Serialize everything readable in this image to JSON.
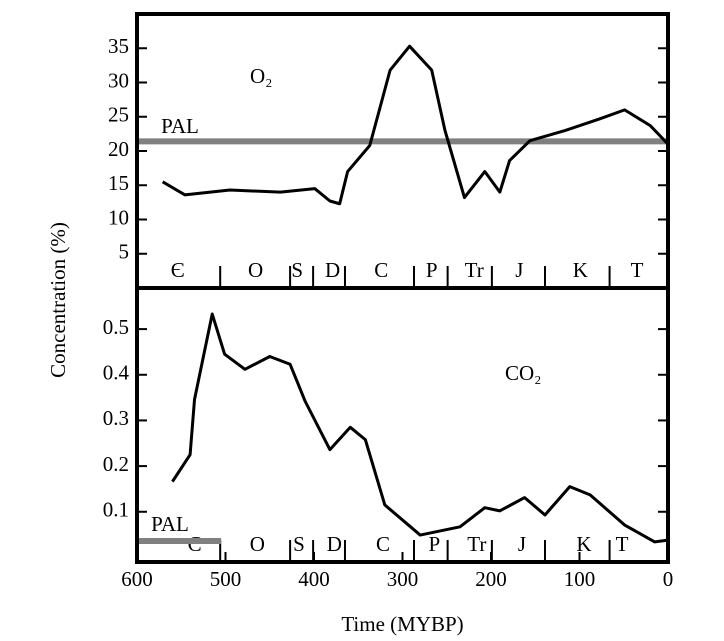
{
  "chart_data": [
    {
      "type": "line",
      "y_label": "Concentration (%)",
      "xlim": [
        600,
        0
      ],
      "ylim": [
        0,
        40
      ],
      "yticks": [
        5,
        10,
        15,
        20,
        25,
        30,
        35
      ],
      "x": [
        571,
        546,
        495,
        438,
        399,
        382,
        371,
        362,
        337,
        314,
        292,
        267,
        252,
        230,
        207,
        190,
        179,
        156,
        116,
        77,
        49,
        20,
        0
      ],
      "series": [
        {
          "name": "O₂",
          "color": "#000000",
          "values": [
            15.5,
            13.6,
            14.3,
            14.0,
            14.5,
            12.7,
            12.3,
            17,
            20.8,
            31.8,
            35.3,
            31.8,
            23,
            13.2,
            17,
            14,
            18.6,
            21.5,
            23,
            24.7,
            26,
            23.7,
            21
          ]
        }
      ],
      "reference_line": {
        "label": "PAL",
        "value": 21.4,
        "color": "#808080"
      },
      "period_boundaries": [
        506,
        427,
        401,
        365,
        287,
        249,
        199,
        139,
        66
      ],
      "periods": [
        {
          "label": "Є",
          "x": 554
        },
        {
          "label": "O",
          "x": 466
        },
        {
          "label": "S",
          "x": 419
        },
        {
          "label": "D",
          "x": 379
        },
        {
          "label": "C",
          "x": 324
        },
        {
          "label": "P",
          "x": 267
        },
        {
          "label": "Tr",
          "x": 219
        },
        {
          "label": "J",
          "x": 168
        },
        {
          "label": "K",
          "x": 99
        },
        {
          "label": "T",
          "x": 35
        }
      ]
    },
    {
      "type": "line",
      "x_label": "Time (MYBP)",
      "xlim": [
        600,
        0
      ],
      "xticks": [
        600,
        500,
        400,
        300,
        200,
        100,
        0
      ],
      "ylim": [
        -0.01,
        0.59
      ],
      "yticks": [
        0.1,
        0.2,
        0.3,
        0.4,
        0.5
      ],
      "x": [
        560,
        540,
        535,
        515,
        501,
        478,
        450,
        427,
        410,
        382,
        359,
        342,
        320,
        280,
        235,
        207,
        190,
        162,
        139,
        111,
        88,
        49,
        15,
        0
      ],
      "series": [
        {
          "name": "CO₂",
          "color": "#000000",
          "values": [
            0.166,
            0.225,
            0.346,
            0.533,
            0.445,
            0.412,
            0.44,
            0.423,
            0.342,
            0.236,
            0.285,
            0.258,
            0.115,
            0.049,
            0.067,
            0.109,
            0.102,
            0.131,
            0.093,
            0.155,
            0.137,
            0.071,
            0.034,
            0.038
          ]
        }
      ],
      "reference_line": {
        "label": "PAL",
        "value": 0.036,
        "color": "#808080",
        "x_extent": [
          600,
          505
        ]
      },
      "period_boundaries": [
        506,
        427,
        401,
        365,
        287,
        249,
        199,
        139,
        66
      ],
      "periods": [
        {
          "label": "Є",
          "x": 535
        },
        {
          "label": "O",
          "x": 464
        },
        {
          "label": "S",
          "x": 417
        },
        {
          "label": "D",
          "x": 377
        },
        {
          "label": "C",
          "x": 322
        },
        {
          "label": "P",
          "x": 264
        },
        {
          "label": "Tr",
          "x": 216
        },
        {
          "label": "J",
          "x": 165
        },
        {
          "label": "K",
          "x": 95
        },
        {
          "label": "T",
          "x": 52
        }
      ]
    }
  ]
}
